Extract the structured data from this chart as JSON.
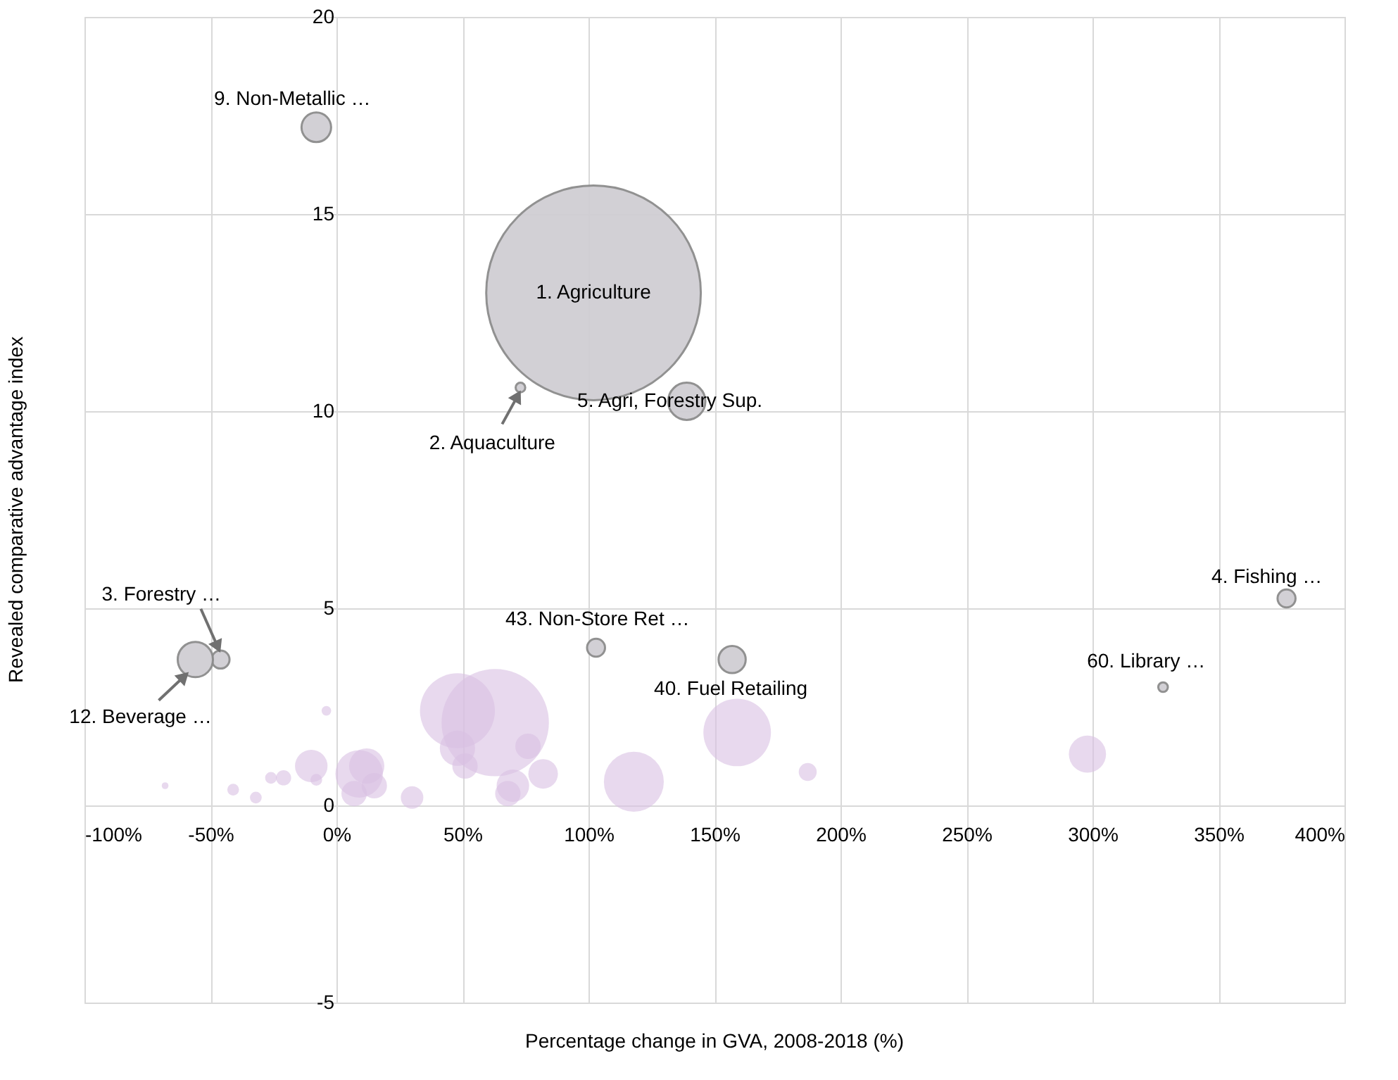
{
  "chart_data": {
    "type": "bubble",
    "xlabel": "Percentage change in GVA, 2008-2018 (%)",
    "ylabel": "Revealed comparative advantage index",
    "xlim": [
      -100,
      400
    ],
    "ylim": [
      -5,
      20
    ],
    "xticks": [
      {
        "value": -100,
        "label": "-100%"
      },
      {
        "value": -50,
        "label": "-50%"
      },
      {
        "value": 0,
        "label": "0%"
      },
      {
        "value": 50,
        "label": "50%"
      },
      {
        "value": 100,
        "label": "100%"
      },
      {
        "value": 150,
        "label": "150%"
      },
      {
        "value": 200,
        "label": "200%"
      },
      {
        "value": 250,
        "label": "250%"
      },
      {
        "value": 300,
        "label": "300%"
      },
      {
        "value": 350,
        "label": "350%"
      },
      {
        "value": 400,
        "label": "400%"
      }
    ],
    "yticks": [
      -5,
      0,
      5,
      10,
      15,
      20
    ],
    "grid": true,
    "series": [
      {
        "color": "#d0ced3",
        "x": [
          102,
          73,
          139,
          -8,
          -46,
          -56,
          103,
          157,
          377,
          328
        ],
        "values": [
          13.0,
          10.6,
          10.25,
          17.2,
          3.7,
          3.7,
          4.0,
          3.7,
          5.25,
          3.0
        ],
        "sizes": [
          1,
          0.002,
          0.03,
          0.019,
          0.007,
          0.027,
          0.007,
          0.016,
          0.007,
          0.002
        ]
      },
      {
        "color": "#d9bfe3",
        "x": [
          -4,
          48,
          63,
          48,
          51,
          76,
          82,
          70,
          68,
          12,
          9,
          15,
          7,
          -10,
          -8,
          -21,
          -26,
          -32,
          -41,
          -68,
          30,
          159,
          118,
          187,
          298
        ],
        "values": [
          2.4,
          2.4,
          2.1,
          1.45,
          1.0,
          1.5,
          0.8,
          0.5,
          0.3,
          1.0,
          0.8,
          0.5,
          0.3,
          1.0,
          0.65,
          0.7,
          0.7,
          0.2,
          0.4,
          0.5,
          0.2,
          1.85,
          0.6,
          0.85,
          1.3
        ],
        "sizes": [
          0.002,
          0.122,
          0.25,
          0.027,
          0.014,
          0.014,
          0.019,
          0.023,
          0.014,
          0.027,
          0.049,
          0.014,
          0.014,
          0.023,
          0.003,
          0.005,
          0.003,
          0.003,
          0.003,
          0.001,
          0.011,
          0.099,
          0.078,
          0.007,
          0.03
        ]
      }
    ],
    "annotations": [
      {
        "text": "1. Agriculture",
        "x": 102,
        "y": 13.0
      },
      {
        "text": "2. Aquaculture",
        "x": 73,
        "y": 10.6
      },
      {
        "text": "5. Agri, Forestry Sup.",
        "x": 139,
        "y": 10.25
      },
      {
        "text": "9. Non-Metallic …",
        "x": -8,
        "y": 17.2
      },
      {
        "text": "3. Forestry …",
        "x": -46,
        "y": 3.7
      },
      {
        "text": "12. Beverage …",
        "x": -56,
        "y": 3.7
      },
      {
        "text": "43. Non-Store Ret …",
        "x": 103,
        "y": 4.0
      },
      {
        "text": "40. Fuel Retailing",
        "x": 157,
        "y": 3.7
      },
      {
        "text": "4. Fishing …",
        "x": 377,
        "y": 5.25
      },
      {
        "text": "60. Library …",
        "x": 328,
        "y": 3.0
      }
    ]
  }
}
